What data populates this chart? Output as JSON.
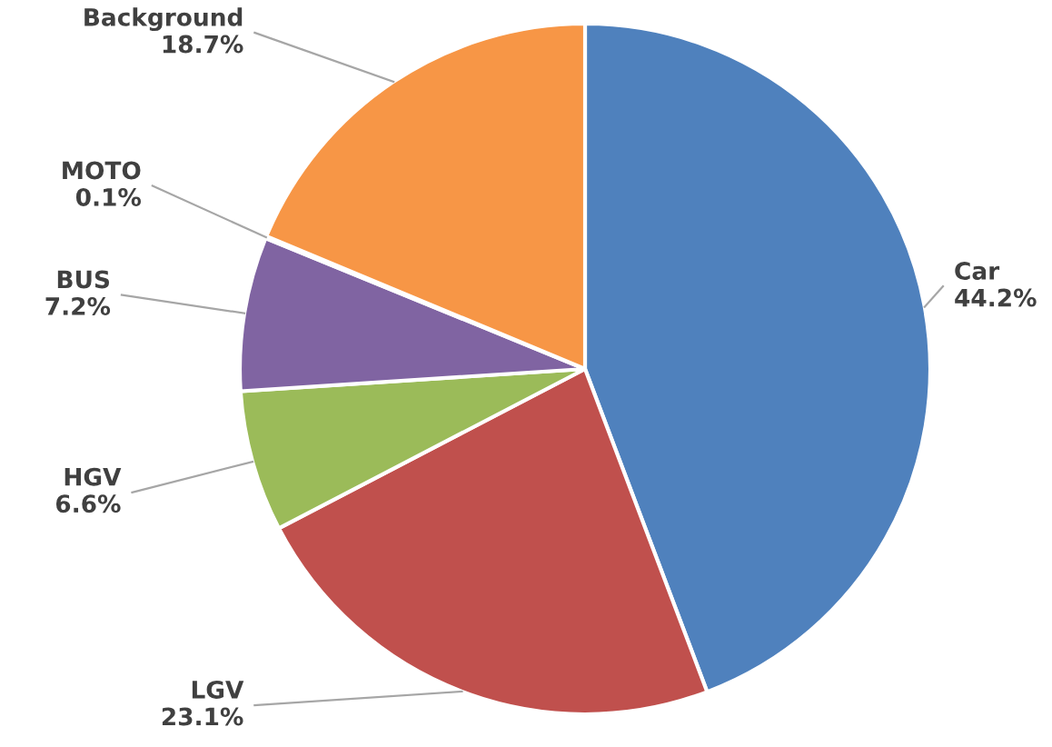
{
  "chart_data": {
    "type": "pie",
    "categories": [
      "Car",
      "LGV",
      "HGV",
      "BUS",
      "MOTO",
      "Background"
    ],
    "values": [
      44.2,
      23.1,
      6.6,
      7.2,
      0.1,
      18.7
    ],
    "value_labels": [
      "44.2%",
      "23.1%",
      "6.6%",
      "7.2%",
      "0.1%",
      "18.7%"
    ],
    "colors": [
      "#4f81bd",
      "#c0504d",
      "#9bbb59",
      "#8064a2",
      "#4bacc6",
      "#f79646"
    ],
    "legend": false
  }
}
